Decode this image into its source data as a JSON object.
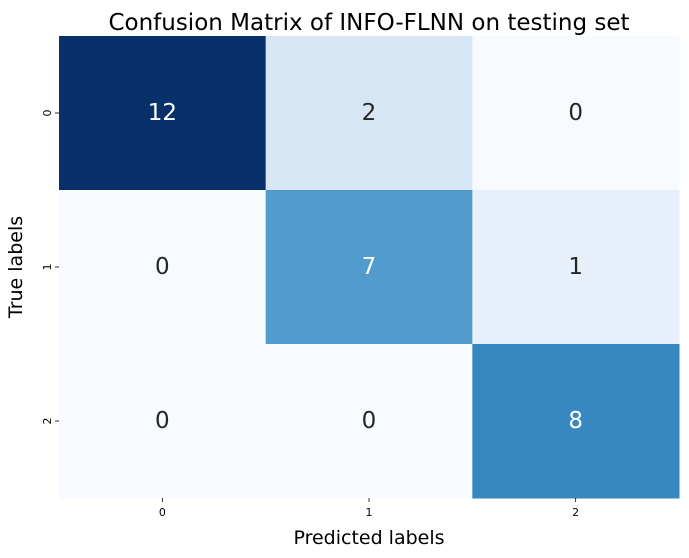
{
  "chart_data": {
    "type": "heatmap",
    "title": "Confusion Matrix of INFO-FLNN on testing set",
    "xlabel": "Predicted labels",
    "ylabel": "True labels",
    "x_categories": [
      "0",
      "1",
      "2"
    ],
    "y_categories": [
      "0",
      "1",
      "2"
    ],
    "values": [
      [
        12,
        2,
        0
      ],
      [
        0,
        7,
        1
      ],
      [
        0,
        0,
        8
      ]
    ],
    "value_range": [
      0,
      12
    ],
    "colormap": "Blues",
    "colorbar": false,
    "grid": false,
    "colors": {
      "cell_0_0": "#08306b",
      "cell_0_1": "#d6e6f4",
      "cell_0_2": "#f7fbff",
      "cell_1_0": "#f7fbff",
      "cell_1_1": "#519ccc",
      "cell_1_2": "#e7f0fa",
      "cell_2_0": "#f7fbff",
      "cell_2_1": "#f7fbff",
      "cell_2_2": "#3787c0",
      "dark_text": "#262626",
      "light_text": "#ffffff"
    }
  }
}
